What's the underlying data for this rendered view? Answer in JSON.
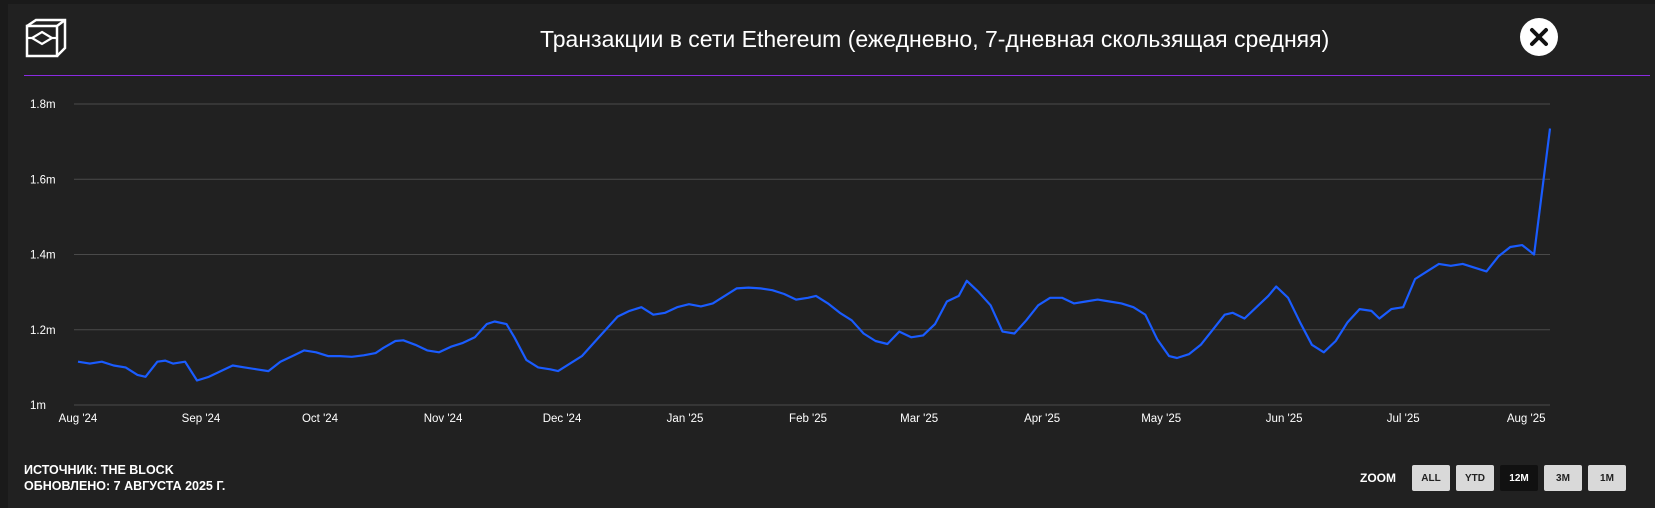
{
  "header": {
    "title": "Транзакции в сети Ethereum (ежедневно, 7-дневная скользящая средняя)",
    "logo_icon": "cube-logo-icon",
    "close_icon": "close-icon"
  },
  "footer": {
    "source": "ИСТОЧНИК: THE BLOCK",
    "updated": "ОБНОВЛЕНО: 7 АВГУСТА 2025 Г."
  },
  "zoom": {
    "label": "ZOOM",
    "buttons": [
      {
        "label": "ALL",
        "active": false
      },
      {
        "label": "YTD",
        "active": false
      },
      {
        "label": "12M",
        "active": true
      },
      {
        "label": "3M",
        "active": false
      },
      {
        "label": "1M",
        "active": false
      }
    ]
  },
  "colors": {
    "background": "#212121",
    "line": "#1a5cff",
    "grid": "#4a4a4a",
    "accent": "#8a2be2"
  },
  "chart_data": {
    "type": "line",
    "title": "Транзакции в сети Ethereum (ежедневно, 7-дневная скользящая средняя)",
    "xlabel": "",
    "ylabel": "",
    "ylim": [
      1000000,
      1800000
    ],
    "xlim": [
      "2024-08-01",
      "2025-08-07"
    ],
    "grid": true,
    "legend": "none",
    "yticks": [
      {
        "value": 1000000,
        "label": "1m"
      },
      {
        "value": 1200000,
        "label": "1.2m"
      },
      {
        "value": 1400000,
        "label": "1.4m"
      },
      {
        "value": 1600000,
        "label": "1.6m"
      },
      {
        "value": 1800000,
        "label": "1.8m"
      }
    ],
    "xticks": [
      {
        "date": "2024-08-01",
        "label": "Aug '24"
      },
      {
        "date": "2024-09-01",
        "label": "Sep '24"
      },
      {
        "date": "2024-10-01",
        "label": "Oct '24"
      },
      {
        "date": "2024-11-01",
        "label": "Nov '24"
      },
      {
        "date": "2024-12-01",
        "label": "Dec '24"
      },
      {
        "date": "2025-01-01",
        "label": "Jan '25"
      },
      {
        "date": "2025-02-01",
        "label": "Feb '25"
      },
      {
        "date": "2025-03-01",
        "label": "Mar '25"
      },
      {
        "date": "2025-04-01",
        "label": "Apr '25"
      },
      {
        "date": "2025-05-01",
        "label": "May '25"
      },
      {
        "date": "2025-06-01",
        "label": "Jun '25"
      },
      {
        "date": "2025-07-01",
        "label": "Jul '25"
      },
      {
        "date": "2025-08-01",
        "label": "Aug '25"
      }
    ],
    "series": [
      {
        "name": "",
        "points": [
          [
            "2024-08-01",
            1115000
          ],
          [
            "2024-08-04",
            1110000
          ],
          [
            "2024-08-07",
            1115000
          ],
          [
            "2024-08-10",
            1105000
          ],
          [
            "2024-08-13",
            1100000
          ],
          [
            "2024-08-16",
            1080000
          ],
          [
            "2024-08-18",
            1075000
          ],
          [
            "2024-08-21",
            1115000
          ],
          [
            "2024-08-23",
            1118000
          ],
          [
            "2024-08-25",
            1110000
          ],
          [
            "2024-08-28",
            1115000
          ],
          [
            "2024-08-31",
            1065000
          ],
          [
            "2024-09-03",
            1075000
          ],
          [
            "2024-09-06",
            1090000
          ],
          [
            "2024-09-09",
            1105000
          ],
          [
            "2024-09-12",
            1100000
          ],
          [
            "2024-09-15",
            1095000
          ],
          [
            "2024-09-18",
            1090000
          ],
          [
            "2024-09-21",
            1115000
          ],
          [
            "2024-09-24",
            1130000
          ],
          [
            "2024-09-27",
            1145000
          ],
          [
            "2024-09-30",
            1140000
          ],
          [
            "2024-10-03",
            1130000
          ],
          [
            "2024-10-06",
            1130000
          ],
          [
            "2024-10-09",
            1128000
          ],
          [
            "2024-10-12",
            1132000
          ],
          [
            "2024-10-15",
            1138000
          ],
          [
            "2024-10-17",
            1152000
          ],
          [
            "2024-10-20",
            1170000
          ],
          [
            "2024-10-22",
            1172000
          ],
          [
            "2024-10-25",
            1160000
          ],
          [
            "2024-10-28",
            1145000
          ],
          [
            "2024-10-31",
            1140000
          ],
          [
            "2024-11-03",
            1155000
          ],
          [
            "2024-11-06",
            1165000
          ],
          [
            "2024-11-09",
            1180000
          ],
          [
            "2024-11-12",
            1215000
          ],
          [
            "2024-11-14",
            1222000
          ],
          [
            "2024-11-17",
            1215000
          ],
          [
            "2024-11-19",
            1180000
          ],
          [
            "2024-11-22",
            1120000
          ],
          [
            "2024-11-25",
            1100000
          ],
          [
            "2024-11-28",
            1095000
          ],
          [
            "2024-11-30",
            1090000
          ],
          [
            "2024-12-03",
            1110000
          ],
          [
            "2024-12-06",
            1130000
          ],
          [
            "2024-12-09",
            1165000
          ],
          [
            "2024-12-12",
            1200000
          ],
          [
            "2024-12-15",
            1235000
          ],
          [
            "2024-12-18",
            1250000
          ],
          [
            "2024-12-21",
            1260000
          ],
          [
            "2024-12-24",
            1240000
          ],
          [
            "2024-12-27",
            1245000
          ],
          [
            "2024-12-30",
            1260000
          ],
          [
            "2025-01-02",
            1268000
          ],
          [
            "2025-01-05",
            1262000
          ],
          [
            "2025-01-08",
            1270000
          ],
          [
            "2025-01-11",
            1290000
          ],
          [
            "2025-01-14",
            1310000
          ],
          [
            "2025-01-17",
            1312000
          ],
          [
            "2025-01-20",
            1310000
          ],
          [
            "2025-01-23",
            1305000
          ],
          [
            "2025-01-26",
            1295000
          ],
          [
            "2025-01-29",
            1280000
          ],
          [
            "2025-02-01",
            1285000
          ],
          [
            "2025-02-03",
            1290000
          ],
          [
            "2025-02-06",
            1270000
          ],
          [
            "2025-02-09",
            1245000
          ],
          [
            "2025-02-12",
            1225000
          ],
          [
            "2025-02-15",
            1190000
          ],
          [
            "2025-02-18",
            1170000
          ],
          [
            "2025-02-21",
            1162000
          ],
          [
            "2025-02-24",
            1195000
          ],
          [
            "2025-02-27",
            1180000
          ],
          [
            "2025-03-02",
            1185000
          ],
          [
            "2025-03-05",
            1215000
          ],
          [
            "2025-03-08",
            1275000
          ],
          [
            "2025-03-11",
            1290000
          ],
          [
            "2025-03-13",
            1330000
          ],
          [
            "2025-03-16",
            1300000
          ],
          [
            "2025-03-19",
            1265000
          ],
          [
            "2025-03-22",
            1195000
          ],
          [
            "2025-03-25",
            1190000
          ],
          [
            "2025-03-28",
            1225000
          ],
          [
            "2025-03-31",
            1265000
          ],
          [
            "2025-04-03",
            1285000
          ],
          [
            "2025-04-06",
            1285000
          ],
          [
            "2025-04-09",
            1270000
          ],
          [
            "2025-04-12",
            1275000
          ],
          [
            "2025-04-15",
            1280000
          ],
          [
            "2025-04-18",
            1275000
          ],
          [
            "2025-04-21",
            1270000
          ],
          [
            "2025-04-24",
            1260000
          ],
          [
            "2025-04-27",
            1240000
          ],
          [
            "2025-04-30",
            1175000
          ],
          [
            "2025-05-03",
            1130000
          ],
          [
            "2025-05-05",
            1125000
          ],
          [
            "2025-05-08",
            1135000
          ],
          [
            "2025-05-11",
            1160000
          ],
          [
            "2025-05-14",
            1200000
          ],
          [
            "2025-05-17",
            1240000
          ],
          [
            "2025-05-19",
            1245000
          ],
          [
            "2025-05-22",
            1230000
          ],
          [
            "2025-05-25",
            1260000
          ],
          [
            "2025-05-28",
            1290000
          ],
          [
            "2025-05-30",
            1315000
          ],
          [
            "2025-06-02",
            1285000
          ],
          [
            "2025-06-05",
            1220000
          ],
          [
            "2025-06-08",
            1160000
          ],
          [
            "2025-06-11",
            1140000
          ],
          [
            "2025-06-14",
            1170000
          ],
          [
            "2025-06-17",
            1220000
          ],
          [
            "2025-06-20",
            1255000
          ],
          [
            "2025-06-23",
            1250000
          ],
          [
            "2025-06-25",
            1230000
          ],
          [
            "2025-06-28",
            1255000
          ],
          [
            "2025-07-01",
            1260000
          ],
          [
            "2025-07-04",
            1335000
          ],
          [
            "2025-07-07",
            1355000
          ],
          [
            "2025-07-10",
            1375000
          ],
          [
            "2025-07-13",
            1370000
          ],
          [
            "2025-07-16",
            1375000
          ],
          [
            "2025-07-19",
            1365000
          ],
          [
            "2025-07-22",
            1355000
          ],
          [
            "2025-07-25",
            1395000
          ],
          [
            "2025-07-28",
            1420000
          ],
          [
            "2025-07-31",
            1425000
          ],
          [
            "2025-08-03",
            1400000
          ],
          [
            "2025-08-07",
            1735000
          ]
        ]
      }
    ]
  }
}
